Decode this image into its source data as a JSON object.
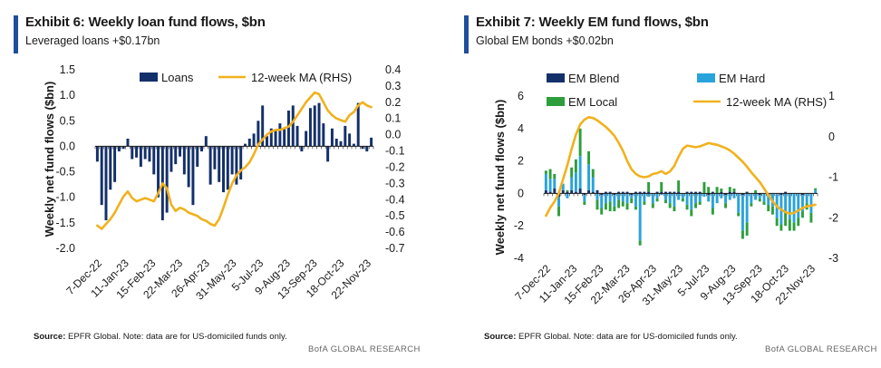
{
  "chart_data": [
    {
      "type": "bar",
      "title": "Exhibit 6: Weekly loan fund flows, $bn",
      "subtitle": "Leveraged loans +$0.17bn",
      "ylabel": "Weekly net fund flows ($bn)",
      "ylim": [
        -2.0,
        1.5
      ],
      "yticks": [
        "1.5",
        "1.0",
        "0.5",
        "0.0",
        "-0.5",
        "-1.0",
        "-1.5",
        "-2.0"
      ],
      "y2lim": [
        -0.7,
        0.4
      ],
      "y2ticks": [
        "0.4",
        "0.3",
        "0.2",
        "0.1",
        "0.0",
        "-0.1",
        "-0.2",
        "-0.3",
        "-0.4",
        "-0.5",
        "-0.6",
        "-0.7"
      ],
      "xticks": [
        "7-Dec-22",
        "11-Jan-23",
        "15-Feb-23",
        "22-Mar-23",
        "26-Apr-23",
        "31-May-23",
        "5-Jul-23",
        "9-Aug-23",
        "13-Sep-23",
        "18-Oct-23",
        "22-Nov-23"
      ],
      "legend": [
        {
          "name": "Loans",
          "color": "#14306b",
          "kind": "bar"
        },
        {
          "name": "12-week MA (RHS)",
          "color": "#f0b21e",
          "kind": "line"
        }
      ],
      "series": [
        {
          "name": "Loans",
          "color": "#14306b",
          "values": [
            -0.3,
            -1.15,
            -1.45,
            -0.85,
            -0.7,
            -0.1,
            -0.05,
            0.15,
            -0.25,
            -0.22,
            -0.4,
            -0.25,
            -0.3,
            -0.55,
            -1.0,
            -1.45,
            -1.3,
            -0.5,
            -0.35,
            -0.2,
            -0.55,
            -0.8,
            -1.15,
            -0.4,
            -0.1,
            0.2,
            -0.75,
            -0.45,
            -0.7,
            -0.9,
            -0.85,
            -0.55,
            -0.75,
            -0.65,
            0.05,
            0.15,
            0.25,
            0.5,
            0.8,
            0.2,
            0.35,
            0.3,
            0.45,
            0.35,
            0.7,
            0.8,
            0.4,
            -0.1,
            0.3,
            0.75,
            0.8,
            0.85,
            0.45,
            -0.3,
            0.35,
            0.15,
            0.1,
            0.4,
            0.25,
            0.05,
            0.85,
            -0.05,
            -0.1,
            0.17
          ]
        },
        {
          "name": "12-week MA (RHS)",
          "color": "#f0b21e",
          "axis": "right",
          "values": [
            -0.56,
            -0.58,
            -0.55,
            -0.52,
            -0.48,
            -0.43,
            -0.38,
            -0.35,
            -0.39,
            -0.41,
            -0.4,
            -0.39,
            -0.4,
            -0.41,
            -0.36,
            -0.3,
            -0.33,
            -0.43,
            -0.47,
            -0.45,
            -0.46,
            -0.48,
            -0.49,
            -0.5,
            -0.52,
            -0.53,
            -0.55,
            -0.56,
            -0.52,
            -0.45,
            -0.37,
            -0.3,
            -0.25,
            -0.22,
            -0.2,
            -0.17,
            -0.12,
            -0.06,
            -0.03,
            0.0,
            0.02,
            0.03,
            0.03,
            0.04,
            0.05,
            0.08,
            0.12,
            0.16,
            0.2,
            0.23,
            0.26,
            0.25,
            0.2,
            0.15,
            0.12,
            0.1,
            0.09,
            0.08,
            0.12,
            0.14,
            0.18,
            0.2,
            0.18,
            0.17
          ]
        }
      ],
      "source": "EPFR Global. Note: data are for US-domiciled funds only."
    },
    {
      "type": "bar",
      "title": "Exhibit 7: Weekly EM fund flows, $bn",
      "subtitle": "Global EM bonds +$0.02bn",
      "ylabel": "Weekly net fund flows ($bn)",
      "ylim": [
        -4,
        6
      ],
      "yticks": [
        "6",
        "4",
        "2",
        "0",
        "-2",
        "-4"
      ],
      "y2lim": [
        -3,
        1
      ],
      "y2ticks": [
        "1",
        "0",
        "-1",
        "-2",
        "-3"
      ],
      "xticks": [
        "7-Dec-22",
        "11-Jan-23",
        "15-Feb-23",
        "22-Mar-23",
        "26-Apr-23",
        "31-May-23",
        "5-Jul-23",
        "9-Aug-23",
        "13-Sep-23",
        "18-Oct-23",
        "22-Nov-23"
      ],
      "legend": [
        {
          "name": "EM Blend",
          "color": "#14306b",
          "kind": "bar"
        },
        {
          "name": "EM Hard",
          "color": "#29a3dc",
          "kind": "bar"
        },
        {
          "name": "EM Local",
          "color": "#2e9e3c",
          "kind": "bar"
        },
        {
          "name": "12-week MA (RHS)",
          "color": "#f0b21e",
          "kind": "line"
        }
      ],
      "series": [
        {
          "name": "EM Blend",
          "color": "#14306b",
          "values": [
            0.2,
            0.1,
            0.3,
            -0.2,
            0.2,
            0.1,
            0.2,
            0.1,
            0.3,
            -0.1,
            0.2,
            0.1,
            0.2,
            -0.1,
            0.1,
            0.1,
            -0.1,
            0.1,
            0.1,
            0.1,
            -0.1,
            0.1,
            0.1,
            0.1,
            0.1,
            0.0,
            0.1,
            0.1,
            0.1,
            0.1,
            0.1,
            0.1,
            0.0,
            0.1,
            0.1,
            0.1,
            0.1,
            0.0,
            -0.1,
            0.1,
            0.0,
            0.1,
            -0.1,
            0.1,
            0.1,
            0.0,
            -0.1,
            0.1,
            0.0,
            0.0,
            -0.1,
            0.0,
            -0.1,
            0.0,
            0.0,
            -0.1,
            0.1,
            0.0,
            0.0,
            0.0,
            -0.1,
            0.0,
            0.0,
            0.02
          ]
        },
        {
          "name": "EM Hard",
          "color": "#29a3dc",
          "values": [
            1.0,
            0.8,
            0.6,
            -0.6,
            0.4,
            -0.3,
            0.8,
            1.2,
            2.0,
            -0.4,
            1.6,
            0.9,
            -0.4,
            -0.8,
            -0.6,
            -0.5,
            -0.7,
            -0.4,
            -0.5,
            -0.6,
            -0.2,
            -0.8,
            -2.9,
            -0.5,
            -0.2,
            -0.6,
            -0.3,
            -0.1,
            -0.4,
            -0.6,
            -0.8,
            -0.4,
            -0.3,
            -0.7,
            -1.0,
            -0.6,
            -0.5,
            -0.2,
            -0.4,
            -0.9,
            -0.6,
            -0.3,
            -0.5,
            -0.4,
            -0.3,
            -1.2,
            -2.2,
            -1.8,
            -0.6,
            -0.4,
            -0.2,
            -0.5,
            -0.6,
            -0.8,
            -1.5,
            -1.8,
            -1.2,
            -1.6,
            -1.8,
            -1.5,
            -1.0,
            -0.6,
            -1.2,
            0.2
          ]
        },
        {
          "name": "EM Local",
          "color": "#2e9e3c",
          "values": [
            0.2,
            0.6,
            0.3,
            -0.6,
            0.0,
            0.1,
            0.6,
            0.8,
            1.7,
            -0.2,
            0.8,
            0.5,
            -0.6,
            -0.4,
            -0.4,
            -0.6,
            -0.3,
            -0.5,
            -0.3,
            -0.4,
            -0.3,
            -0.2,
            -0.3,
            -0.2,
            0.6,
            -0.3,
            -0.2,
            0.6,
            -0.2,
            -0.3,
            -0.3,
            0.7,
            -0.2,
            -0.3,
            -0.4,
            -0.3,
            -0.2,
            0.7,
            0.4,
            -0.4,
            0.4,
            0.2,
            -0.3,
            0.3,
            0.2,
            -0.2,
            -0.5,
            -0.8,
            -0.2,
            0.2,
            -0.2,
            -0.2,
            -0.4,
            -0.5,
            -0.5,
            -0.4,
            -0.8,
            -0.7,
            -0.5,
            -0.5,
            -0.4,
            -0.4,
            -0.6,
            0.1
          ]
        },
        {
          "name": "12-week MA (RHS)",
          "color": "#f0b21e",
          "axis": "right",
          "values": [
            -1.95,
            -1.75,
            -1.6,
            -1.4,
            -1.05,
            -0.7,
            -0.3,
            0.05,
            0.3,
            0.42,
            0.48,
            0.46,
            0.4,
            0.32,
            0.24,
            0.14,
            0.02,
            -0.15,
            -0.35,
            -0.6,
            -0.8,
            -0.92,
            -0.98,
            -1.0,
            -0.98,
            -0.92,
            -0.9,
            -0.85,
            -0.92,
            -0.86,
            -0.72,
            -0.5,
            -0.3,
            -0.22,
            -0.24,
            -0.26,
            -0.24,
            -0.2,
            -0.16,
            -0.18,
            -0.2,
            -0.24,
            -0.28,
            -0.34,
            -0.42,
            -0.52,
            -0.62,
            -0.74,
            -0.88,
            -1.0,
            -1.12,
            -1.28,
            -1.44,
            -1.6,
            -1.72,
            -1.8,
            -1.86,
            -1.9,
            -1.88,
            -1.82,
            -1.76,
            -1.72,
            -1.7,
            -1.68
          ]
        }
      ],
      "source": "EPFR Global. Note: data are for US-domiciled funds only."
    }
  ],
  "source_label": "Source:",
  "brand": "BofA GLOBAL RESEARCH"
}
